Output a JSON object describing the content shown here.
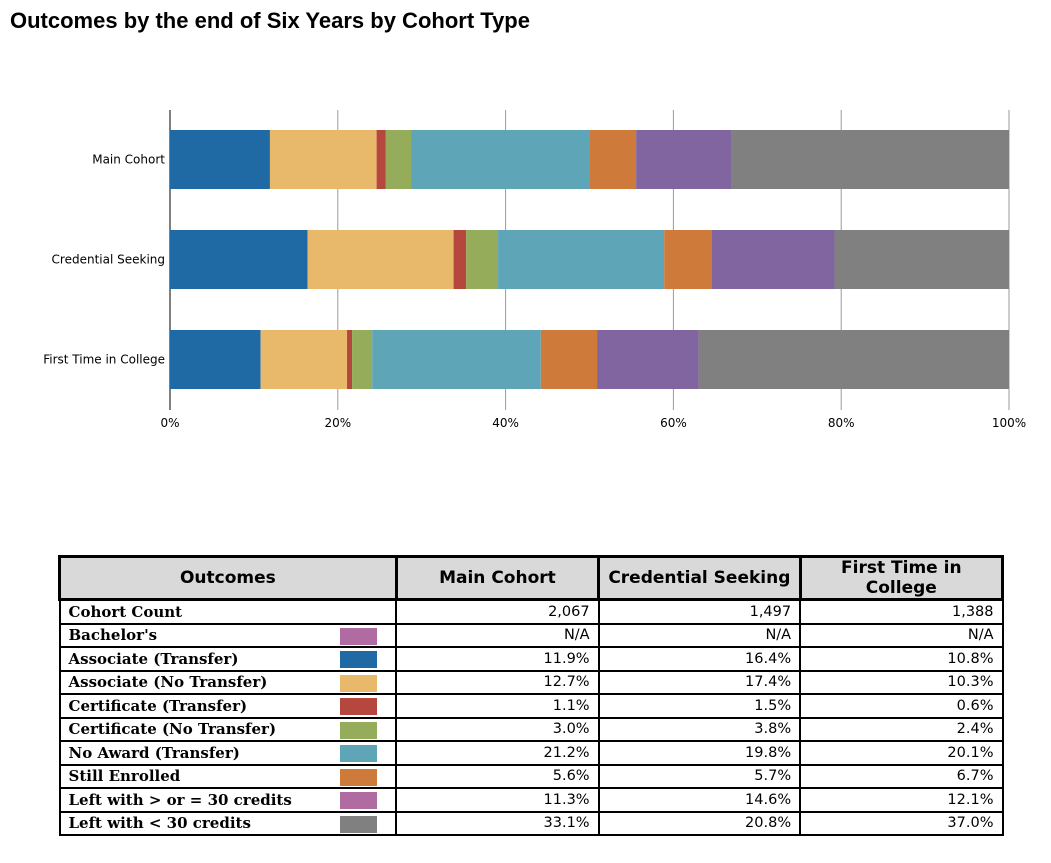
{
  "title": "Outcomes by the end of Six Years by Cohort Type",
  "chart_data": {
    "type": "bar",
    "orientation": "horizontal",
    "stacked": "percent",
    "categories": [
      "Main Cohort",
      "Credential Seeking",
      "First Time in College"
    ],
    "xlim": [
      0,
      100
    ],
    "x_ticks": [
      "0%",
      "20%",
      "40%",
      "60%",
      "80%",
      "100%"
    ],
    "grid": true,
    "series": [
      {
        "name": "Associate (Transfer)",
        "color": "#1f6aa5",
        "values": [
          11.9,
          16.4,
          10.8
        ]
      },
      {
        "name": "Associate (No Transfer)",
        "color": "#e8b96a",
        "values": [
          12.7,
          17.4,
          10.3
        ]
      },
      {
        "name": "Certificate (Transfer)",
        "color": "#b5473f",
        "values": [
          1.1,
          1.5,
          0.6
        ]
      },
      {
        "name": "Certificate (No Transfer)",
        "color": "#95ad5b",
        "values": [
          3.0,
          3.8,
          2.4
        ]
      },
      {
        "name": "No Award (Transfer)",
        "color": "#5ea5b7",
        "values": [
          21.2,
          19.8,
          20.1
        ]
      },
      {
        "name": "Still Enrolled",
        "color": "#cd7a3a",
        "values": [
          5.6,
          5.7,
          6.7
        ]
      },
      {
        "name": "Left with > or = 30 credits",
        "color": "#8065a0",
        "values": [
          11.3,
          14.6,
          12.1
        ]
      },
      {
        "name": "Left with < 30 credits",
        "color": "#808080",
        "values": [
          33.1,
          20.8,
          37.0
        ]
      }
    ]
  },
  "table": {
    "headers": [
      "Outcomes",
      "Main Cohort",
      "Credential Seeking",
      "First Time in College"
    ],
    "rows": [
      {
        "label": "Cohort Count",
        "swatch": "",
        "values": [
          "2,067",
          "1,497",
          "1,388"
        ]
      },
      {
        "label": "Bachelor's",
        "swatch": "#b06ca0",
        "values": [
          "N/A",
          "N/A",
          "N/A"
        ]
      },
      {
        "label": "Associate (Transfer)",
        "swatch": "#1f6aa5",
        "values": [
          "11.9%",
          "16.4%",
          "10.8%"
        ]
      },
      {
        "label": "Associate (No Transfer)",
        "swatch": "#e8b96a",
        "values": [
          "12.7%",
          "17.4%",
          "10.3%"
        ]
      },
      {
        "label": "Certificate (Transfer)",
        "swatch": "#b5473f",
        "values": [
          "1.1%",
          "1.5%",
          "0.6%"
        ]
      },
      {
        "label": "Certificate (No Transfer)",
        "swatch": "#95ad5b",
        "values": [
          "3.0%",
          "3.8%",
          "2.4%"
        ]
      },
      {
        "label": "No Award (Transfer)",
        "swatch": "#5ea5b7",
        "values": [
          "21.2%",
          "19.8%",
          "20.1%"
        ]
      },
      {
        "label": "Still Enrolled",
        "swatch": "#cd7a3a",
        "values": [
          "5.6%",
          "5.7%",
          "6.7%"
        ]
      },
      {
        "label": "Left with > or = 30 credits",
        "swatch": "#b06ca0",
        "values": [
          "11.3%",
          "14.6%",
          "12.1%"
        ]
      },
      {
        "label": "Left with < 30 credits",
        "swatch": "#808080",
        "values": [
          "33.1%",
          "20.8%",
          "37.0%"
        ]
      }
    ]
  }
}
